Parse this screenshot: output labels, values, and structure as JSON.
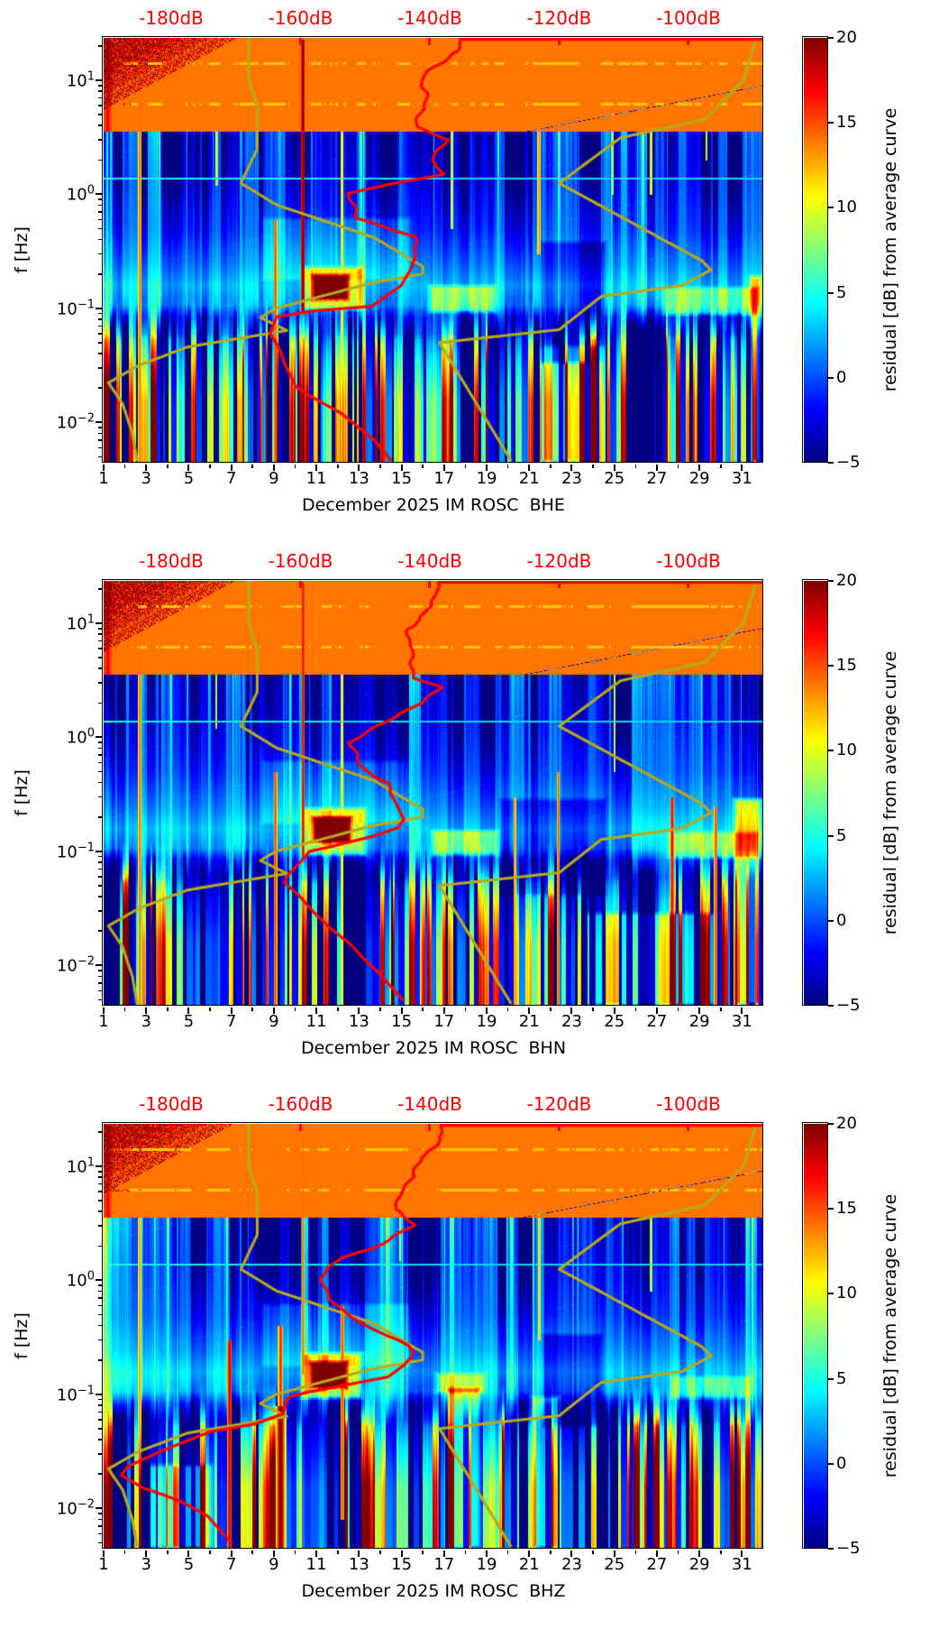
{
  "chart_data": {
    "type": "heatmap",
    "description": "Three stacked day-frequency PSD residual spectrograms (jet colormap) for station IM ROSC channels BHE, BHN, BHZ, December 2025, with station PSD curve (red) and Peterson NLNM/NHNM reference curves (olive) overlaid against a red top dB axis.",
    "x_axis": {
      "tick_days": [
        1,
        3,
        5,
        7,
        9,
        11,
        13,
        15,
        17,
        19,
        21,
        23,
        25,
        27,
        29,
        31
      ],
      "minor_days": [
        2,
        4,
        6,
        8,
        10,
        12,
        14,
        16,
        18,
        20,
        22,
        24,
        26,
        28,
        30
      ],
      "range_days": [
        1,
        32
      ]
    },
    "y_axis": {
      "label": "f [Hz]",
      "major_exponents": [
        1,
        0,
        -1,
        -2
      ],
      "range_hz": [
        0.00443,
        23.5
      ],
      "scale": "log"
    },
    "top_axis": {
      "tick_dB": [
        -180,
        -160,
        -140,
        -120,
        -100
      ],
      "unit": "dB",
      "range_dB": [
        -190.45,
        -88.4
      ],
      "color": "#ff0000"
    },
    "colorbar": {
      "label": "residual [dB] from average curve",
      "ticks": [
        20,
        15,
        10,
        5,
        0,
        -5
      ],
      "vmin": -5,
      "vmax": 20,
      "colormap": "jet"
    },
    "models": {
      "color": "#b5a91e",
      "nlnm_dB_f": [
        [
          -168.0,
          23.5
        ],
        [
          -168.0,
          10
        ],
        [
          -166.7,
          5.9
        ],
        [
          -166.7,
          2.5
        ],
        [
          -169.2,
          1.25
        ],
        [
          -163.7,
          0.806
        ],
        [
          -148.6,
          0.417
        ],
        [
          -141.1,
          0.233
        ],
        [
          -141.1,
          0.2
        ],
        [
          -149.0,
          0.167
        ],
        [
          -163.8,
          0.1
        ],
        [
          -166.2,
          0.083
        ],
        [
          -162.1,
          0.064
        ],
        [
          -177.5,
          0.0457
        ],
        [
          -185.0,
          0.0316
        ],
        [
          -189.7,
          0.0222
        ],
        [
          -187.5,
          0.0145
        ],
        [
          -186.0,
          0.008
        ],
        [
          -185.3,
          0.0047
        ]
      ],
      "nhnm_dB_f": [
        [
          -89.5,
          23.5
        ],
        [
          -91.5,
          10
        ],
        [
          -97.4,
          4.55
        ],
        [
          -110.5,
          3.13
        ],
        [
          -120.0,
          1.25
        ],
        [
          -98.0,
          0.263
        ],
        [
          -96.5,
          0.217
        ],
        [
          -101.0,
          0.159
        ],
        [
          -113.5,
          0.127
        ],
        [
          -120.0,
          0.065
        ],
        [
          -138.5,
          0.05
        ],
        [
          -127.5,
          0.0047
        ]
      ]
    },
    "heatmap_bands_log10f_base_colgain_speckle": [
      [
        1.372,
        -0.8,
        1.05,
        3.2
      ],
      [
        0.7,
        -1.2,
        1.0,
        2.8
      ],
      [
        0.15,
        -1.0,
        0.7,
        2.0
      ],
      [
        -0.3,
        0.4,
        0.45,
        1.6
      ],
      [
        -0.62,
        2.6,
        0.33,
        1.5
      ],
      [
        -0.8,
        4.3,
        0.33,
        1.5
      ],
      [
        -0.97,
        2.8,
        0.45,
        1.2
      ],
      [
        -1.08,
        -1.5,
        0.75,
        0.8
      ],
      [
        -1.22,
        -3.6,
        0.95,
        0.5
      ],
      [
        -1.45,
        -2.8,
        1.25,
        0.35
      ],
      [
        -1.8,
        -1.5,
        1.55,
        0.3
      ],
      [
        -2.36,
        -1.2,
        1.6,
        0.25
      ]
    ],
    "artifact_lines_hz": [
      1.38,
      9.7
    ],
    "hot_pixel_rows_hz": [
      6.2,
      14
    ],
    "red_curve_color": "#ff0000",
    "panels": [
      {
        "channel": "BHE",
        "xlabel": "December 2025 IM ROSC  BHE",
        "seed": 11,
        "red_psd_dB_f": [
          [
            -135,
            23.5
          ],
          [
            -135.5,
            18
          ],
          [
            -140.5,
            12
          ],
          [
            -141,
            10
          ],
          [
            -140.5,
            6.6
          ],
          [
            -142,
            3.9
          ],
          [
            -137.2,
            3.0
          ],
          [
            -139.5,
            2.0
          ],
          [
            -138,
            1.5
          ],
          [
            -152.5,
            1.02
          ],
          [
            -151,
            0.62
          ],
          [
            -146,
            0.5
          ],
          [
            -142.3,
            0.43
          ],
          [
            -142,
            0.31
          ],
          [
            -143,
            0.217
          ],
          [
            -144.5,
            0.157
          ],
          [
            -149,
            0.104
          ],
          [
            -158,
            0.095
          ],
          [
            -163.7,
            0.084
          ],
          [
            -164.7,
            0.06
          ],
          [
            -163.3,
            0.045
          ],
          [
            -162.5,
            0.033
          ],
          [
            -160.7,
            0.0205
          ],
          [
            -157.9,
            0.0163
          ],
          [
            -153.7,
            0.012
          ],
          [
            -148.6,
            0.007
          ],
          [
            -146.1,
            0.0047
          ]
        ],
        "events": {
          "blobs": [
            [
              10.2,
              13.3,
              0.095,
              0.24,
              7
            ],
            [
              10.7,
              12.6,
              0.115,
              0.205,
              13
            ]
          ],
          "patches": [
            [
              1.0,
              1.35,
              0.0044,
              23,
              5
            ],
            [
              8.3,
              15.5,
              0.17,
              0.65,
              2.2
            ],
            [
              16.2,
              19.5,
              0.09,
              0.165,
              6
            ],
            [
              27.2,
              31.9,
              0.085,
              0.16,
              5
            ],
            [
              21.4,
              24.7,
              0.045,
              0.4,
              -3.2
            ],
            [
              31.25,
              32,
              0.0044,
              0.2,
              8
            ],
            [
              21.2,
              24.5,
              0.0044,
              0.035,
              6
            ]
          ],
          "red_lines": [
            [
              2.68,
              23,
              0.0044,
              2,
              15
            ],
            [
              6.28,
              23,
              1.2,
              1.5,
              11
            ],
            [
              9.05,
              0.6,
              0.0044,
              2,
              16
            ],
            [
              10.35,
              23,
              0.09,
              2,
              21
            ],
            [
              12.2,
              23,
              0.0044,
              1.5,
              12
            ],
            [
              17.35,
              23,
              0.5,
              1.5,
              11
            ],
            [
              21.45,
              23,
              0.3,
              2,
              14
            ],
            [
              24.9,
              23,
              1.0,
              1.2,
              10
            ],
            [
              26.7,
              23,
              1.0,
              1.2,
              11
            ],
            [
              29.3,
              23,
              2.0,
              1.2,
              10
            ]
          ]
        }
      },
      {
        "channel": "BHN",
        "xlabel": "December 2025 IM ROSC  BHN",
        "seed": 23,
        "red_psd_dB_f": [
          [
            -138.5,
            23.5
          ],
          [
            -139,
            17
          ],
          [
            -143.3,
            8.3
          ],
          [
            -142.6,
            5
          ],
          [
            -142.3,
            3.3
          ],
          [
            -138.2,
            2.74
          ],
          [
            -141,
            2.0
          ],
          [
            -147.7,
            1.3
          ],
          [
            -152.1,
            0.88
          ],
          [
            -150.5,
            0.55
          ],
          [
            -146.5,
            0.4
          ],
          [
            -145.6,
            0.29
          ],
          [
            -144,
            0.19
          ],
          [
            -145,
            0.16
          ],
          [
            -148.9,
            0.135
          ],
          [
            -155.3,
            0.11
          ],
          [
            -158.6,
            0.1
          ],
          [
            -159.8,
            0.083
          ],
          [
            -161.9,
            0.062
          ],
          [
            -162.5,
            0.053
          ],
          [
            -160.4,
            0.042
          ],
          [
            -157.9,
            0.029
          ],
          [
            -155.3,
            0.021
          ],
          [
            -152.1,
            0.015
          ],
          [
            -150.4,
            0.0117
          ],
          [
            -147.9,
            0.0086
          ],
          [
            -144.2,
            0.005
          ]
        ],
        "events": {
          "blobs": [
            [
              10.2,
              13.4,
              0.09,
              0.25,
              7
            ],
            [
              10.7,
              12.7,
              0.115,
              0.21,
              13
            ]
          ],
          "patches": [
            [
              1.0,
              1.35,
              0.0044,
              23,
              5
            ],
            [
              8.3,
              15.5,
              0.17,
              0.65,
              2.2
            ],
            [
              16.3,
              19.6,
              0.09,
              0.16,
              6
            ],
            [
              27.4,
              31.9,
              0.085,
              0.155,
              5
            ],
            [
              19.5,
              24.7,
              0.04,
              0.3,
              -3
            ],
            [
              30.5,
              32,
              0.0044,
              0.3,
              9
            ],
            [
              23.4,
              30,
              0.0044,
              0.03,
              5
            ]
          ],
          "red_lines": [
            [
              2.68,
              23,
              0.0044,
              2,
              15
            ],
            [
              6.28,
              23,
              1.2,
              1.2,
              10
            ],
            [
              9.05,
              0.5,
              0.0044,
              2,
              16
            ],
            [
              10.35,
              23,
              0.09,
              1.5,
              18
            ],
            [
              12.2,
              23,
              0.0044,
              1.5,
              12
            ],
            [
              20.3,
              0.3,
              0.0044,
              1.5,
              14
            ],
            [
              22.35,
              0.5,
              0.0044,
              1.5,
              15
            ],
            [
              25.0,
              23,
              0.5,
              1.2,
              10
            ],
            [
              27.7,
              0.3,
              0.0044,
              2,
              18
            ],
            [
              29.75,
              0.25,
              0.0044,
              2,
              16
            ]
          ]
        }
      },
      {
        "channel": "BHZ",
        "xlabel": "December 2025 IM ROSC  BHZ",
        "seed": 37,
        "red_psd_dB_f": [
          [
            -138,
            23.5
          ],
          [
            -138.5,
            17
          ],
          [
            -142,
            10
          ],
          [
            -144,
            6
          ],
          [
            -145.4,
            4.2
          ],
          [
            -142.1,
            3.05
          ],
          [
            -146,
            2.3
          ],
          [
            -149,
            1.88
          ],
          [
            -153.5,
            1.58
          ],
          [
            -157,
            1.04
          ],
          [
            -155.5,
            0.75
          ],
          [
            -153.9,
            0.577
          ],
          [
            -150.7,
            0.417
          ],
          [
            -147.2,
            0.35
          ],
          [
            -143.3,
            0.268
          ],
          [
            -142.6,
            0.232
          ],
          [
            -142.8,
            0.215
          ],
          [
            -144,
            0.18
          ],
          [
            -146.5,
            0.142
          ],
          [
            -150.7,
            0.128
          ],
          [
            -156.3,
            0.111
          ],
          [
            -158.7,
            0.105
          ],
          [
            -161.5,
            0.096
          ],
          [
            -162.2,
            0.087
          ],
          [
            -162.6,
            0.068
          ],
          [
            -167,
            0.055
          ],
          [
            -174,
            0.047
          ],
          [
            -181.4,
            0.032
          ],
          [
            -186.6,
            0.0235
          ],
          [
            -187.7,
            0.0196
          ],
          [
            -184.5,
            0.0152
          ],
          [
            -181.1,
            0.0131
          ],
          [
            -178.2,
            0.0113
          ],
          [
            -174.4,
            0.0086
          ],
          [
            -170.7,
            0.005
          ]
        ],
        "events": {
          "blobs": [
            [
              10.2,
              13.2,
              0.09,
              0.24,
              8
            ],
            [
              10.6,
              12.5,
              0.11,
              0.2,
              14
            ]
          ],
          "patches": [
            [
              1.0,
              1.35,
              0.0044,
              23,
              5
            ],
            [
              8.3,
              15.5,
              0.17,
              0.65,
              2.2
            ],
            [
              16.5,
              19.0,
              0.1,
              0.16,
              5
            ],
            [
              27.5,
              31.5,
              0.09,
              0.15,
              4
            ],
            [
              21.5,
              24.5,
              0.05,
              0.35,
              -3
            ],
            [
              17.0,
              18.8,
              0.0044,
              0.12,
              7
            ],
            [
              21.0,
              22.5,
              0.0044,
              0.1,
              6
            ],
            [
              3.0,
              6.2,
              0.0044,
              0.025,
              5
            ]
          ],
          "red_lines": [
            [
              2.68,
              23,
              0.0044,
              2,
              14
            ],
            [
              6.9,
              0.3,
              0.0044,
              2.5,
              19
            ],
            [
              9.3,
              0.08,
              0.0044,
              7,
              23
            ],
            [
              9.3,
              0.4,
              0.08,
              3,
              17
            ],
            [
              12.2,
              0.6,
              0.008,
              2,
              16
            ],
            [
              10.35,
              23,
              0.15,
              1.5,
              15
            ],
            [
              14.9,
              23,
              1.5,
              1.2,
              10
            ],
            [
              21.45,
              23,
              0.3,
              1.5,
              12
            ],
            [
              26.7,
              23,
              0.8,
              1.2,
              10
            ]
          ]
        }
      }
    ]
  }
}
